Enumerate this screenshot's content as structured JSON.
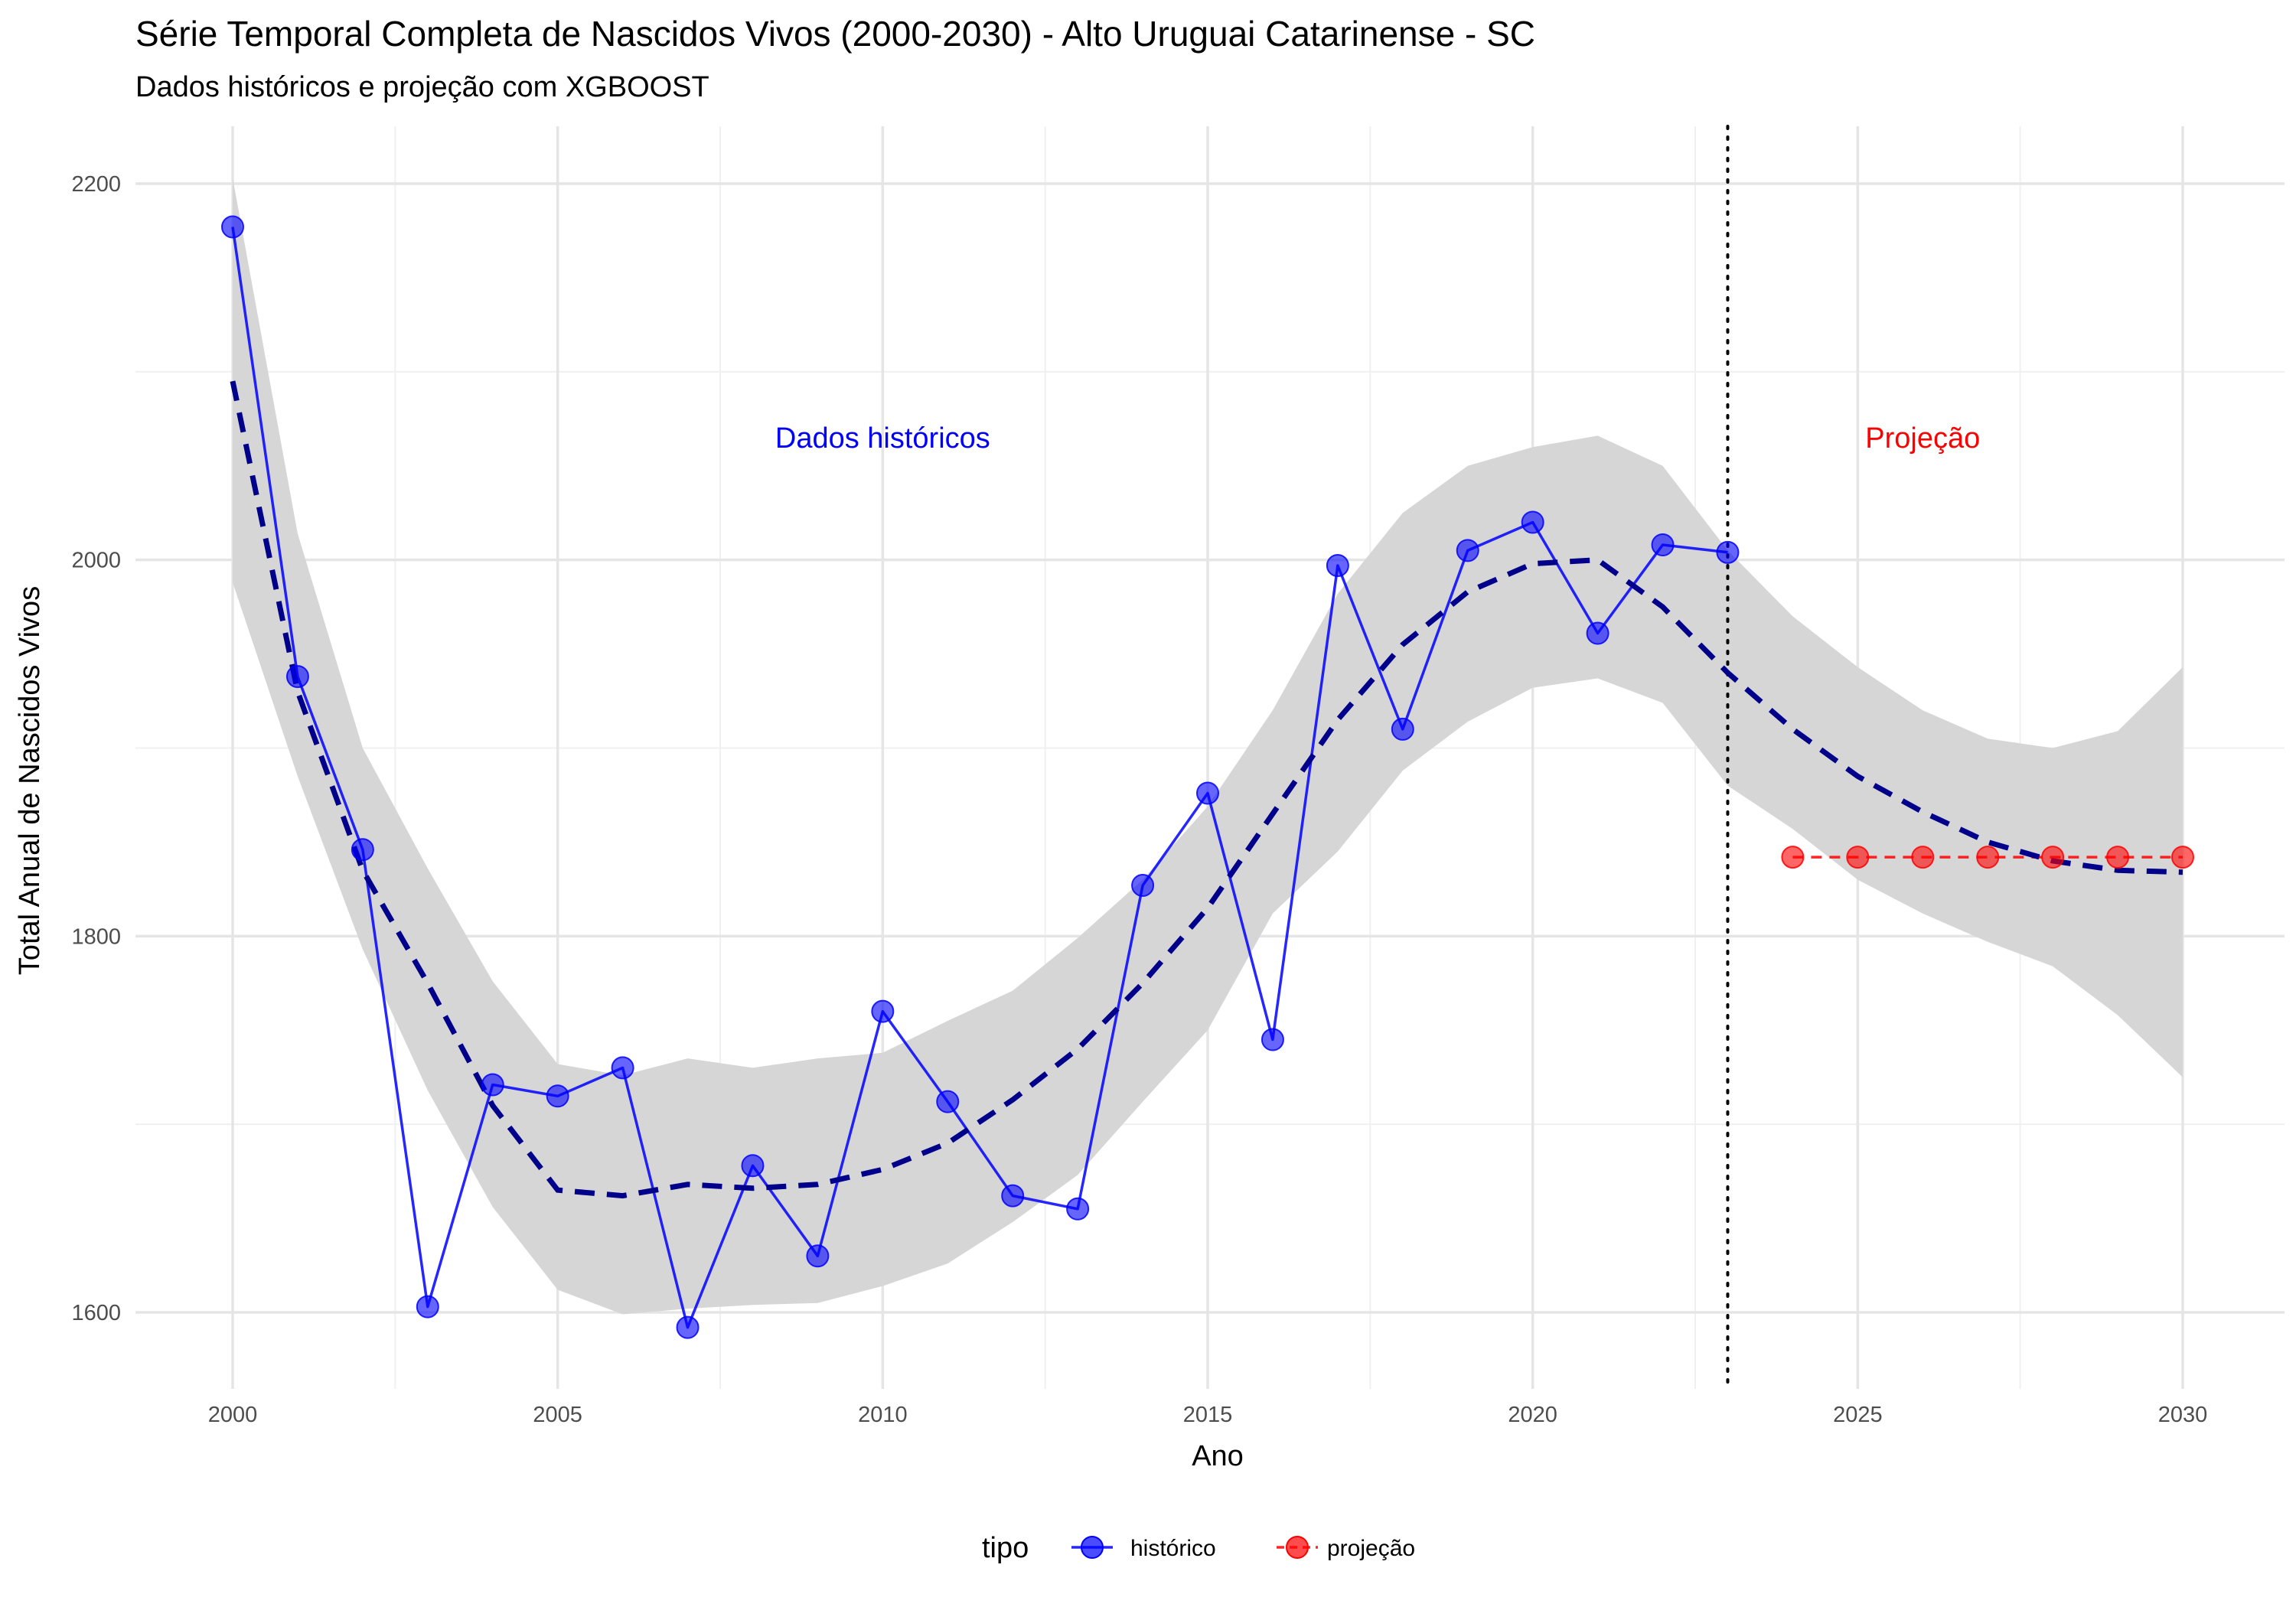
{
  "chart_data": {
    "type": "line",
    "title": "Série Temporal Completa de Nascidos Vivos (2000-2030) -  Alto Uruguai Catarinense - SC",
    "subtitle": "Dados históricos e projeção com XGBOOST",
    "xlabel": "Ano",
    "ylabel": "Total Anual de Nascidos Vivos",
    "xlim": [
      1998.5,
      2031.5
    ],
    "ylim": [
      1562,
      2230
    ],
    "x_ticks": [
      2000,
      2005,
      2010,
      2015,
      2020,
      2025,
      2030
    ],
    "y_ticks": [
      1600,
      1800,
      2000,
      2200
    ],
    "grid": true,
    "legend": {
      "title": "tipo",
      "position": "bottom"
    },
    "series": [
      {
        "name": "histórico",
        "color": "#0000ff",
        "line_style": "solid",
        "x": [
          2000,
          2001,
          2002,
          2003,
          2004,
          2005,
          2006,
          2007,
          2008,
          2009,
          2010,
          2011,
          2012,
          2013,
          2014,
          2015,
          2016,
          2017,
          2018,
          2019,
          2020,
          2021,
          2022,
          2023
        ],
        "y": [
          2177,
          1938,
          1846,
          1603,
          1721,
          1715,
          1730,
          1592,
          1678,
          1630,
          1760,
          1712,
          1662,
          1655,
          1827,
          1876,
          1745,
          1997,
          1910,
          2005,
          2020,
          1961,
          2008,
          2004
        ]
      },
      {
        "name": "projeção",
        "color": "#ff0000",
        "line_style": "dashed",
        "x": [
          2024,
          2025,
          2026,
          2027,
          2028,
          2029,
          2030
        ],
        "y": [
          1842,
          1842,
          1842,
          1842,
          1842,
          1842,
          1842
        ]
      }
    ],
    "smooth_trend": {
      "color": "#00008b",
      "line_style": "dashed",
      "band_color": "#d6d6d6",
      "x": [
        2000,
        2001,
        2002,
        2003,
        2004,
        2005,
        2006,
        2007,
        2008,
        2009,
        2010,
        2011,
        2012,
        2013,
        2014,
        2015,
        2016,
        2017,
        2018,
        2019,
        2020,
        2021,
        2022,
        2023,
        2024,
        2025,
        2026,
        2027,
        2028,
        2029,
        2030
      ],
      "y": [
        2095,
        1930,
        1835,
        1775,
        1710,
        1665,
        1662,
        1668,
        1666,
        1668,
        1676,
        1690,
        1713,
        1740,
        1775,
        1815,
        1865,
        1915,
        1955,
        1983,
        1998,
        2000,
        1975,
        1940,
        1910,
        1885,
        1866,
        1850,
        1840,
        1835,
        1834
      ],
      "lower": [
        1988,
        1885,
        1793,
        1718,
        1656,
        1612,
        1599,
        1602,
        1604,
        1605,
        1614,
        1626,
        1648,
        1673,
        1712,
        1750,
        1812,
        1845,
        1888,
        1914,
        1932,
        1937,
        1924,
        1880,
        1857,
        1830,
        1812,
        1797,
        1784,
        1758,
        1725
      ],
      "upper": [
        2203,
        2014,
        1900,
        1836,
        1776,
        1732,
        1726,
        1735,
        1730,
        1735,
        1738,
        1755,
        1771,
        1799,
        1830,
        1869,
        1920,
        1982,
        2025,
        2050,
        2060,
        2066,
        2050,
        2005,
        1970,
        1943,
        1920,
        1905,
        1900,
        1909,
        1943
      ]
    },
    "annotations": [
      {
        "text": "Dados históricos",
        "x": 2010,
        "y": 2065,
        "color": "#0000ff"
      },
      {
        "text": "Projeção",
        "x": 2026,
        "y": 2065,
        "color": "#ff0000"
      }
    ],
    "vline": {
      "x": 2023,
      "style": "dotted",
      "color": "#000000"
    }
  }
}
